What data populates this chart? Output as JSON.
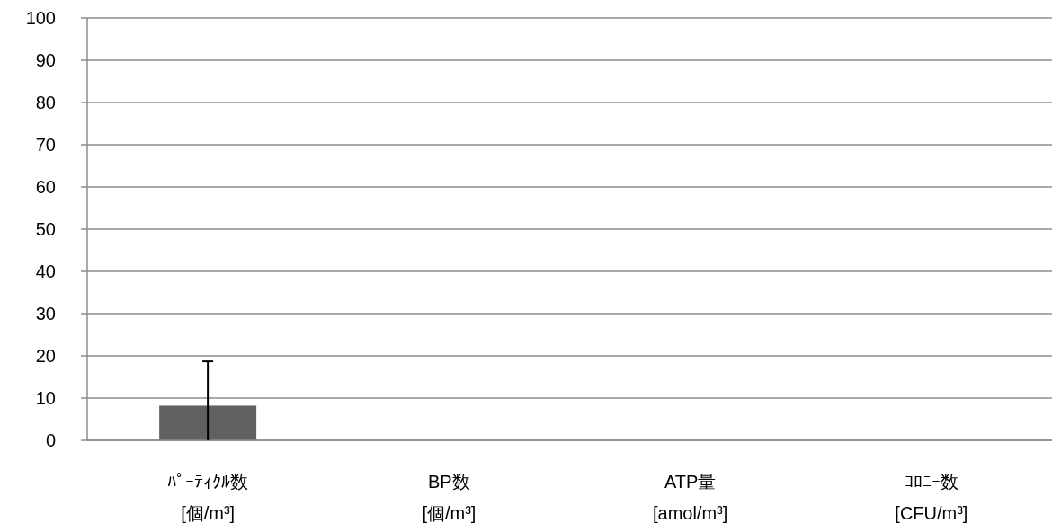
{
  "chart_data": {
    "type": "bar",
    "categories": [
      "ﾊﾟｰﾃｨｸﾙ数\n[個/m³]",
      "BP数\n[個/m³]",
      "ATP量\n[amol/m³]",
      "ｺﾛﾆｰ数\n[CFU/m³]"
    ],
    "values": [
      8.2,
      0,
      0,
      0
    ],
    "errors": [
      [
        0,
        18.7
      ],
      null,
      null,
      null
    ],
    "color": "#606060",
    "ylim": [
      0,
      100
    ],
    "yticks": [
      0,
      10,
      20,
      30,
      40,
      50,
      60,
      70,
      80,
      90,
      100
    ],
    "grid": "y"
  }
}
